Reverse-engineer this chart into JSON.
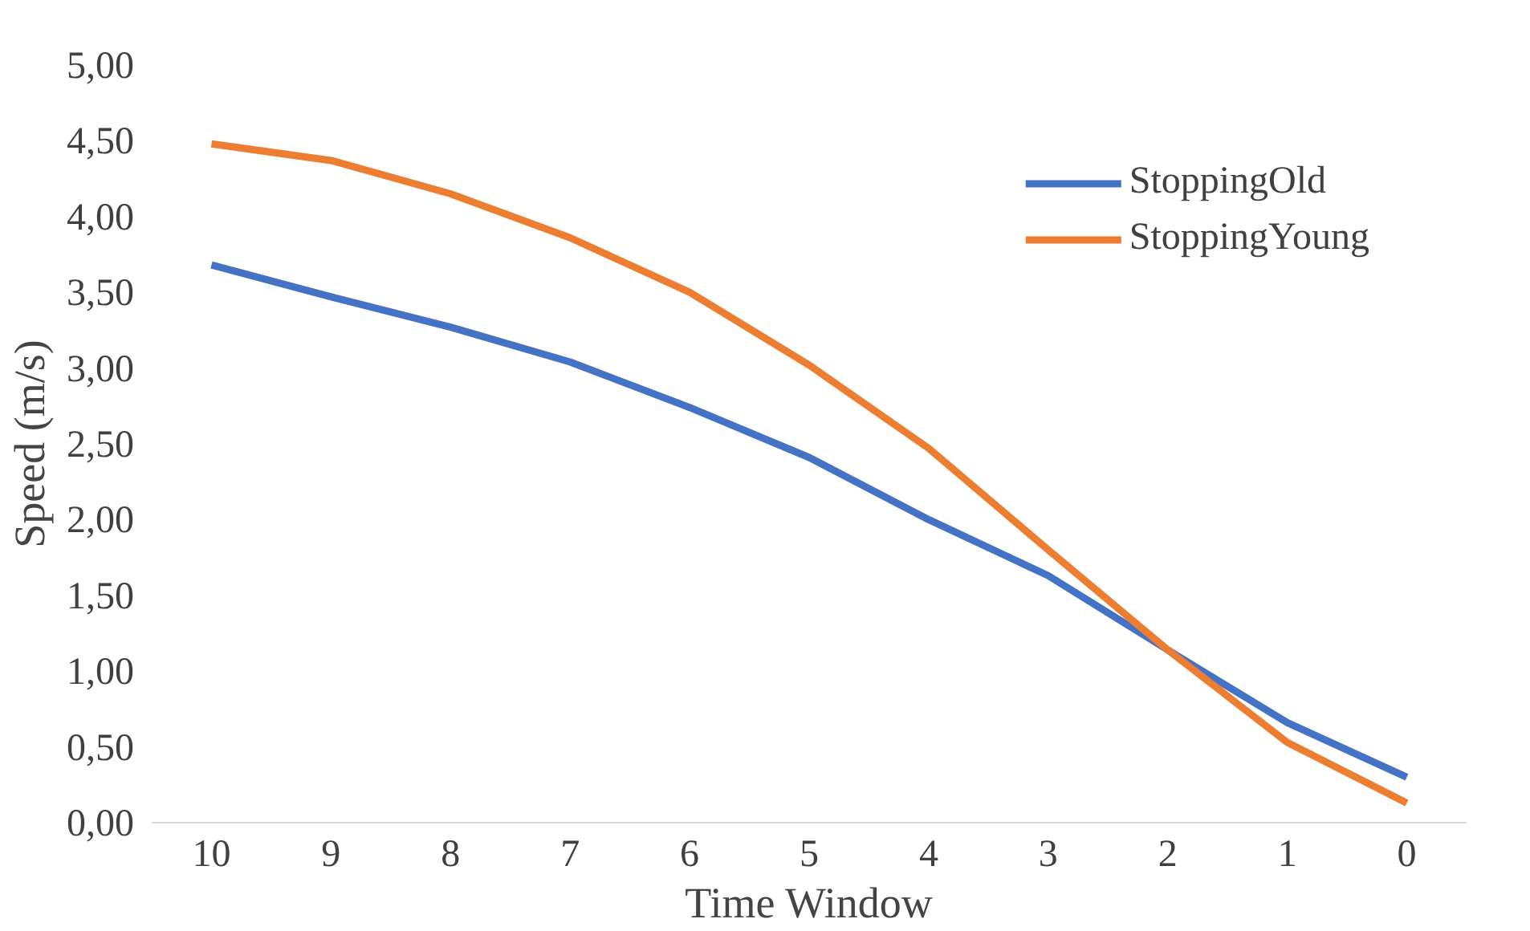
{
  "chart_data": {
    "type": "line",
    "xlabel": "Time Window",
    "ylabel": "Speed (m/s)",
    "categories": [
      "10",
      "9",
      "8",
      "7",
      "6",
      "5",
      "4",
      "3",
      "2",
      "1",
      "0"
    ],
    "series": [
      {
        "name": "StoppingOld",
        "color": "#4472c4",
        "values": [
          3.68,
          3.47,
          3.27,
          3.04,
          2.74,
          2.41,
          2.0,
          1.63,
          1.14,
          0.66,
          0.3
        ]
      },
      {
        "name": "StoppingYoung",
        "color": "#ed7d31",
        "values": [
          4.48,
          4.37,
          4.15,
          3.86,
          3.5,
          3.02,
          2.47,
          1.8,
          1.14,
          0.53,
          0.13
        ]
      }
    ],
    "ylim": [
      0,
      5
    ],
    "yticks": [
      {
        "value": 0,
        "label": "0,00"
      },
      {
        "value": 0.5,
        "label": "0,50"
      },
      {
        "value": 1,
        "label": "1,00"
      },
      {
        "value": 1.5,
        "label": "1,50"
      },
      {
        "value": 2,
        "label": "2,00"
      },
      {
        "value": 2.5,
        "label": "2,50"
      },
      {
        "value": 3,
        "label": "3,00"
      },
      {
        "value": 3.5,
        "label": "3,50"
      },
      {
        "value": 4,
        "label": "4,00"
      },
      {
        "value": 4.5,
        "label": "4,50"
      },
      {
        "value": 5,
        "label": "5,00"
      }
    ],
    "grid": false,
    "legend": "top right",
    "line_style": "solid",
    "marker": "none"
  }
}
